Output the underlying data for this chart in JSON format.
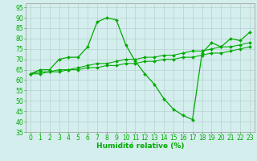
{
  "line1": {
    "x": [
      0,
      1,
      2,
      3,
      4,
      5,
      6,
      7,
      8,
      9,
      10,
      11,
      12,
      13,
      14,
      15,
      16,
      17,
      18,
      19,
      20,
      21,
      22,
      23
    ],
    "y": [
      63,
      65,
      65,
      70,
      71,
      71,
      76,
      88,
      90,
      89,
      77,
      69,
      63,
      58,
      51,
      46,
      43,
      41,
      73,
      78,
      76,
      80,
      79,
      83
    ]
  },
  "line2": {
    "x": [
      0,
      1,
      2,
      3,
      4,
      5,
      6,
      7,
      8,
      9,
      10,
      11,
      12,
      13,
      14,
      15,
      16,
      17,
      18,
      19,
      20,
      21,
      22,
      23
    ],
    "y": [
      63,
      64,
      64,
      65,
      65,
      66,
      67,
      68,
      68,
      69,
      70,
      70,
      71,
      71,
      72,
      72,
      73,
      74,
      74,
      75,
      76,
      76,
      77,
      78
    ]
  },
  "line3": {
    "x": [
      0,
      1,
      2,
      3,
      4,
      5,
      6,
      7,
      8,
      9,
      10,
      11,
      12,
      13,
      14,
      15,
      16,
      17,
      18,
      19,
      20,
      21,
      22,
      23
    ],
    "y": [
      63,
      63,
      64,
      64,
      65,
      65,
      66,
      66,
      67,
      67,
      68,
      68,
      69,
      69,
      70,
      70,
      71,
      71,
      72,
      73,
      73,
      74,
      75,
      76
    ]
  },
  "xlabel": "Humidité relative (%)",
  "xlim": [
    -0.5,
    23.5
  ],
  "ylim": [
    35,
    97
  ],
  "yticks": [
    35,
    40,
    45,
    50,
    55,
    60,
    65,
    70,
    75,
    80,
    85,
    90,
    95
  ],
  "xticks": [
    0,
    1,
    2,
    3,
    4,
    5,
    6,
    7,
    8,
    9,
    10,
    11,
    12,
    13,
    14,
    15,
    16,
    17,
    18,
    19,
    20,
    21,
    22,
    23
  ],
  "bg_color": "#d4eeed",
  "grid_color": "#b0c8c8",
  "line_color": "#00aa00",
  "xlabel_fontsize": 6.5,
  "tick_fontsize": 5.5,
  "tick_color": "#00aa00",
  "marker": "D",
  "markersize": 2.0,
  "linewidth": 0.9
}
